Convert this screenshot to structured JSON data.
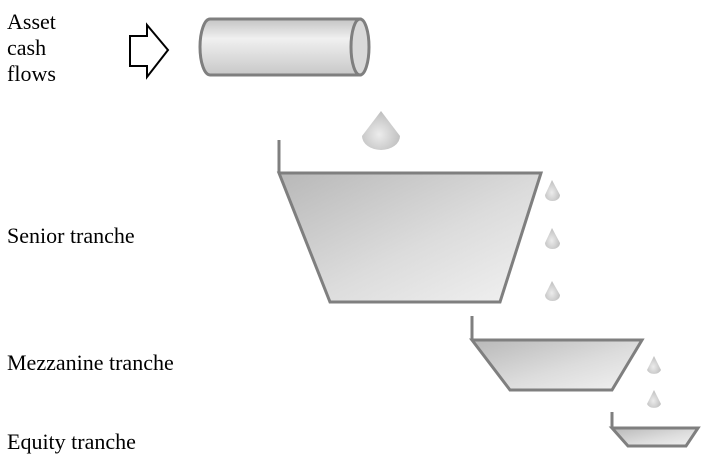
{
  "labels": {
    "asset_line1": "Asset",
    "asset_line2": "cash",
    "asset_line3": "flows",
    "senior": "Senior tranche",
    "mezzanine": "Mezzanine tranche",
    "equity": "Equity tranche"
  },
  "colors": {
    "outline": "#7f7f7f",
    "fill_dark": "#bdbdbd",
    "fill_light": "#eaeaea",
    "arrow_fill": "#ffffff",
    "arrow_stroke": "#000000"
  },
  "icons": {
    "arrow": "right-arrow-icon",
    "pipe": "pipe-icon",
    "drop": "droplet-icon"
  }
}
